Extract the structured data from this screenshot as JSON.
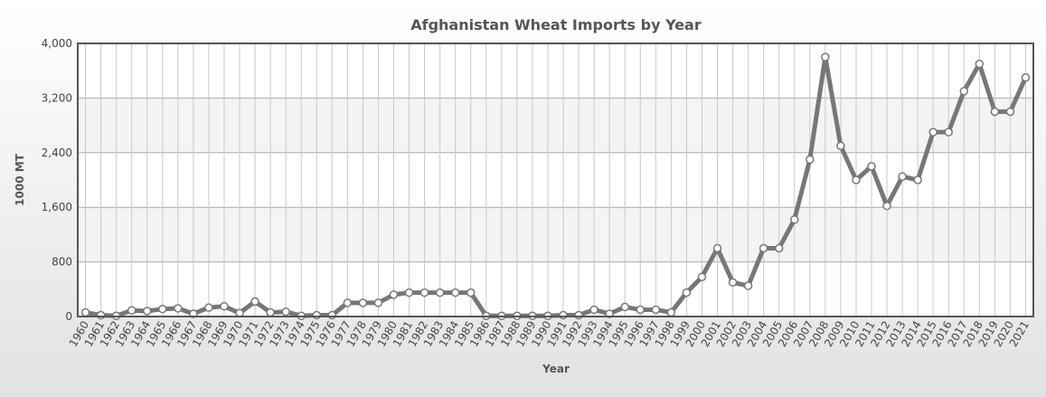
{
  "chart_data": {
    "type": "line",
    "title": "Afghanistan Wheat Imports by Year",
    "x_label": "Year",
    "y_label": "1000 MT",
    "categories": [
      "1960",
      "1961",
      "1962",
      "1963",
      "1964",
      "1965",
      "1966",
      "1967",
      "1968",
      "1969",
      "1970",
      "1971",
      "1972",
      "1973",
      "1974",
      "1975",
      "1976",
      "1977",
      "1978",
      "1979",
      "1980",
      "1981",
      "1982",
      "1983",
      "1984",
      "1985",
      "1986",
      "1987",
      "1988",
      "1989",
      "1990",
      "1991",
      "1992",
      "1993",
      "1994",
      "1995",
      "1996",
      "1997",
      "1998",
      "1999",
      "2000",
      "2001",
      "2002",
      "2003",
      "2004",
      "2005",
      "2006",
      "2007",
      "2008",
      "2009",
      "2010",
      "2011",
      "2012",
      "2013",
      "2014",
      "2015",
      "2016",
      "2017",
      "2018",
      "2019",
      "2020",
      "2021"
    ],
    "values": [
      60,
      20,
      10,
      90,
      80,
      110,
      120,
      40,
      130,
      150,
      50,
      220,
      60,
      70,
      10,
      20,
      20,
      200,
      200,
      200,
      320,
      350,
      350,
      350,
      350,
      350,
      10,
      10,
      10,
      10,
      10,
      20,
      20,
      100,
      40,
      140,
      100,
      100,
      60,
      350,
      580,
      1000,
      500,
      450,
      1000,
      1000,
      1420,
      2300,
      3800,
      2500,
      2000,
      2200,
      1620,
      2050,
      2000,
      2700,
      2700,
      3300,
      3700,
      3000,
      3000,
      3500
    ],
    "color": "#777777",
    "ylim": [
      0,
      4000
    ],
    "yticks": [
      0,
      800,
      {
        "value": 1600,
        "label": "1,600"
      },
      {
        "value": 2400,
        "label": "2,400"
      },
      {
        "value": 3200,
        "label": "3,200"
      },
      {
        "value": 4000,
        "label": "4,000"
      }
    ],
    "grid": true
  }
}
